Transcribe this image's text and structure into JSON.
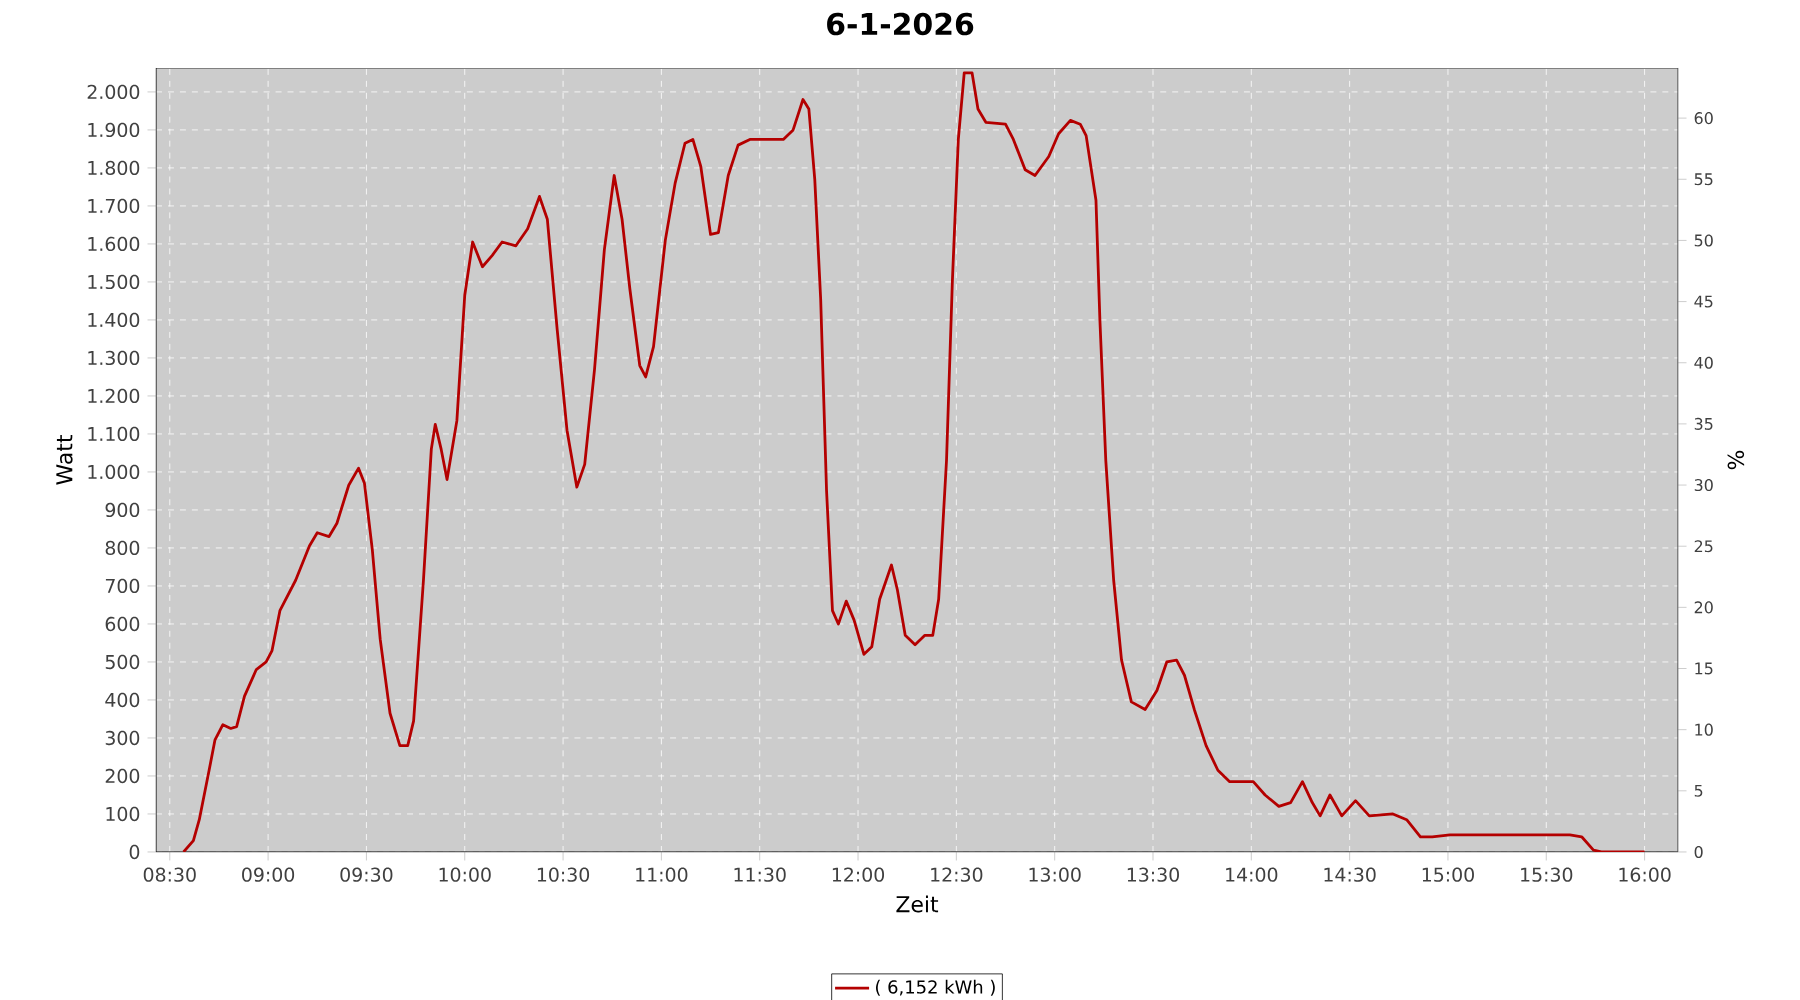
{
  "chart_data": {
    "type": "line",
    "title": "6-1-2026",
    "xlabel": "Zeit",
    "ylabel": "Watt",
    "y2label": "%",
    "xlim": [
      8.43,
      16.17
    ],
    "ylim": [
      0,
      2063
    ],
    "y2lim": [
      0,
      64.1
    ],
    "xticks": [
      {
        "value": 8.5,
        "label": "08:30"
      },
      {
        "value": 9,
        "label": "09:00"
      },
      {
        "value": 9.5,
        "label": "09:30"
      },
      {
        "value": 10,
        "label": "10:00"
      },
      {
        "value": 10.5,
        "label": "10:30"
      },
      {
        "value": 11,
        "label": "11:00"
      },
      {
        "value": 11.5,
        "label": "11:30"
      },
      {
        "value": 12,
        "label": "12:00"
      },
      {
        "value": 12.5,
        "label": "12:30"
      },
      {
        "value": 13,
        "label": "13:00"
      },
      {
        "value": 13.5,
        "label": "13:30"
      },
      {
        "value": 14,
        "label": "14:00"
      },
      {
        "value": 14.5,
        "label": "14:30"
      },
      {
        "value": 15,
        "label": "15:00"
      },
      {
        "value": 15.5,
        "label": "15:30"
      },
      {
        "value": 16,
        "label": "16:00"
      }
    ],
    "yticks": [
      0,
      100,
      200,
      300,
      400,
      500,
      600,
      700,
      800,
      900,
      {
        "value": 1000,
        "label": "1.000"
      },
      {
        "value": 1100,
        "label": "1.100"
      },
      {
        "value": 1200,
        "label": "1.200"
      },
      {
        "value": 1300,
        "label": "1.300"
      },
      {
        "value": 1400,
        "label": "1.400"
      },
      {
        "value": 1500,
        "label": "1.500"
      },
      {
        "value": 1600,
        "label": "1.600"
      },
      {
        "value": 1700,
        "label": "1.700"
      },
      {
        "value": 1800,
        "label": "1.800"
      },
      {
        "value": 1900,
        "label": "1.900"
      },
      {
        "value": 2000,
        "label": "2.000"
      }
    ],
    "y2ticks": [
      0,
      5,
      10,
      15,
      20,
      25,
      30,
      35,
      40,
      45,
      50,
      55,
      60
    ],
    "grid": true,
    "legend": "bottom",
    "marker": "none",
    "line_style": "solid",
    "series": [
      {
        "name": "( 6,152 kWh )",
        "color": "#b40000",
        "x": [
          8.57,
          8.62,
          8.65,
          8.7,
          8.73,
          8.77,
          8.81,
          8.84,
          8.88,
          8.94,
          8.99,
          9.02,
          9.06,
          9.14,
          9.21,
          9.25,
          9.31,
          9.35,
          9.41,
          9.46,
          9.49,
          9.53,
          9.57,
          9.62,
          9.67,
          9.71,
          9.74,
          9.79,
          9.83,
          9.85,
          9.88,
          9.91,
          9.96,
          10.0,
          10.04,
          10.09,
          10.14,
          10.19,
          10.26,
          10.32,
          10.38,
          10.42,
          10.47,
          10.52,
          10.57,
          10.61,
          10.66,
          10.71,
          10.76,
          10.8,
          10.84,
          10.89,
          10.92,
          10.96,
          11.02,
          11.07,
          11.12,
          11.16,
          11.2,
          11.25,
          11.29,
          11.34,
          11.39,
          11.45,
          11.62,
          11.67,
          11.72,
          11.75,
          11.78,
          11.81,
          11.84,
          11.87,
          11.9,
          11.94,
          11.98,
          12.03,
          12.07,
          12.11,
          12.17,
          12.2,
          12.24,
          12.29,
          12.34,
          12.38,
          12.41,
          12.45,
          12.48,
          12.51,
          12.54,
          12.58,
          12.61,
          12.65,
          12.75,
          12.79,
          12.85,
          12.9,
          12.97,
          13.02,
          13.08,
          13.13,
          13.16,
          13.21,
          13.23,
          13.26,
          13.3,
          13.34,
          13.39,
          13.46,
          13.52,
          13.57,
          13.62,
          13.66,
          13.71,
          13.77,
          13.83,
          13.89,
          14.01,
          14.07,
          14.14,
          14.2,
          14.26,
          14.31,
          14.35,
          14.4,
          14.46,
          14.53,
          14.6,
          14.72,
          14.79,
          14.86,
          14.92,
          15.01,
          15.62,
          15.68,
          15.74,
          15.78,
          16.0
        ],
        "values": [
          0,
          30,
          85,
          215,
          295,
          335,
          325,
          330,
          410,
          480,
          500,
          530,
          635,
          715,
          805,
          840,
          830,
          865,
          965,
          1010,
          970,
          795,
          560,
          365,
          280,
          280,
          345,
          715,
          1060,
          1125,
          1060,
          980,
          1135,
          1465,
          1605,
          1540,
          1570,
          1605,
          1595,
          1640,
          1725,
          1665,
          1375,
          1110,
          960,
          1020,
          1270,
          1585,
          1780,
          1665,
          1480,
          1280,
          1250,
          1330,
          1610,
          1760,
          1865,
          1875,
          1805,
          1625,
          1630,
          1780,
          1860,
          1875,
          1875,
          1900,
          1980,
          1955,
          1770,
          1455,
          950,
          635,
          600,
          660,
          610,
          520,
          540,
          665,
          755,
          690,
          570,
          545,
          570,
          570,
          665,
          1030,
          1505,
          1875,
          2050,
          2050,
          1955,
          1920,
          1915,
          1875,
          1795,
          1780,
          1830,
          1890,
          1925,
          1915,
          1885,
          1715,
          1400,
          1030,
          715,
          505,
          395,
          375,
          425,
          500,
          505,
          465,
          375,
          280,
          215,
          185,
          185,
          150,
          120,
          130,
          185,
          130,
          95,
          150,
          95,
          135,
          95,
          100,
          85,
          40,
          40,
          45,
          45,
          40,
          5,
          0,
          0
        ]
      }
    ]
  }
}
